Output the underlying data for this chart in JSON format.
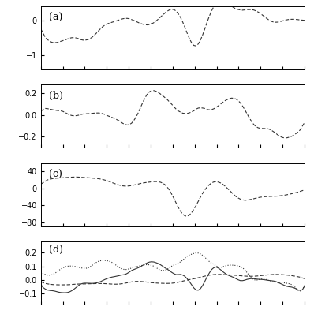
{
  "panel_a_ylim": [
    -1.4,
    0.4
  ],
  "panel_a_yticks": [
    0,
    -1
  ],
  "panel_b_ylim": [
    -0.3,
    0.28
  ],
  "panel_b_yticks": [
    0.2,
    0,
    -0.2
  ],
  "panel_c_ylim": [
    -88,
    58
  ],
  "panel_c_yticks": [
    40,
    0,
    -40,
    -80
  ],
  "panel_d_ylim": [
    -0.18,
    0.28
  ],
  "panel_d_yticks": [
    0.2,
    0.1,
    0,
    -0.1
  ],
  "n_points": 120,
  "line_color": "#333333",
  "background": "#ffffff"
}
